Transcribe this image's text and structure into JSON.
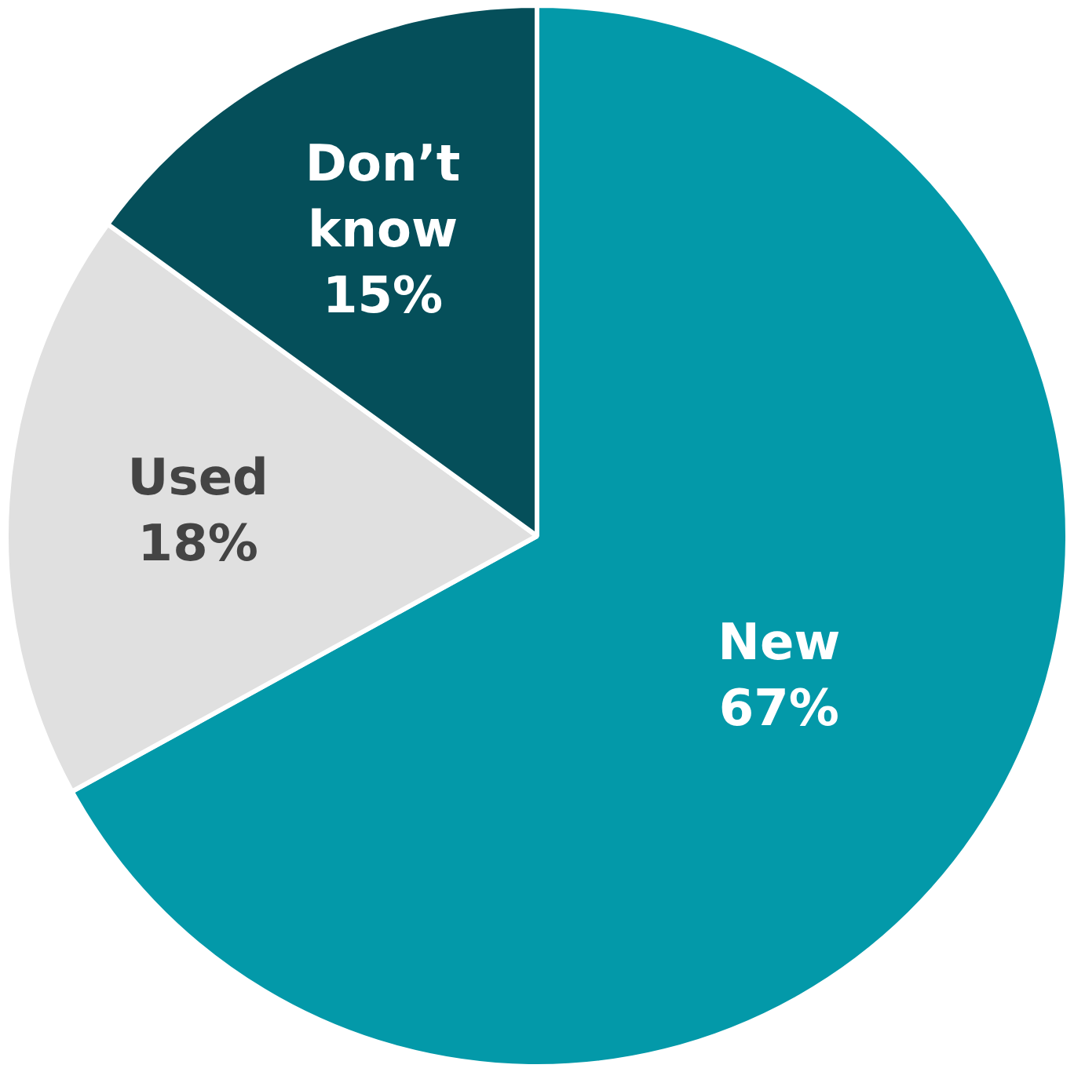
{
  "chart_data": {
    "type": "pie",
    "categories": [
      "New",
      "Used",
      "Don’t know"
    ],
    "values": [
      67,
      18,
      15
    ],
    "colors": [
      "#0399a9",
      "#e0e0e0",
      "#054f5a"
    ],
    "value_labels": [
      "67%",
      "18%",
      "15%"
    ],
    "legend": false
  }
}
